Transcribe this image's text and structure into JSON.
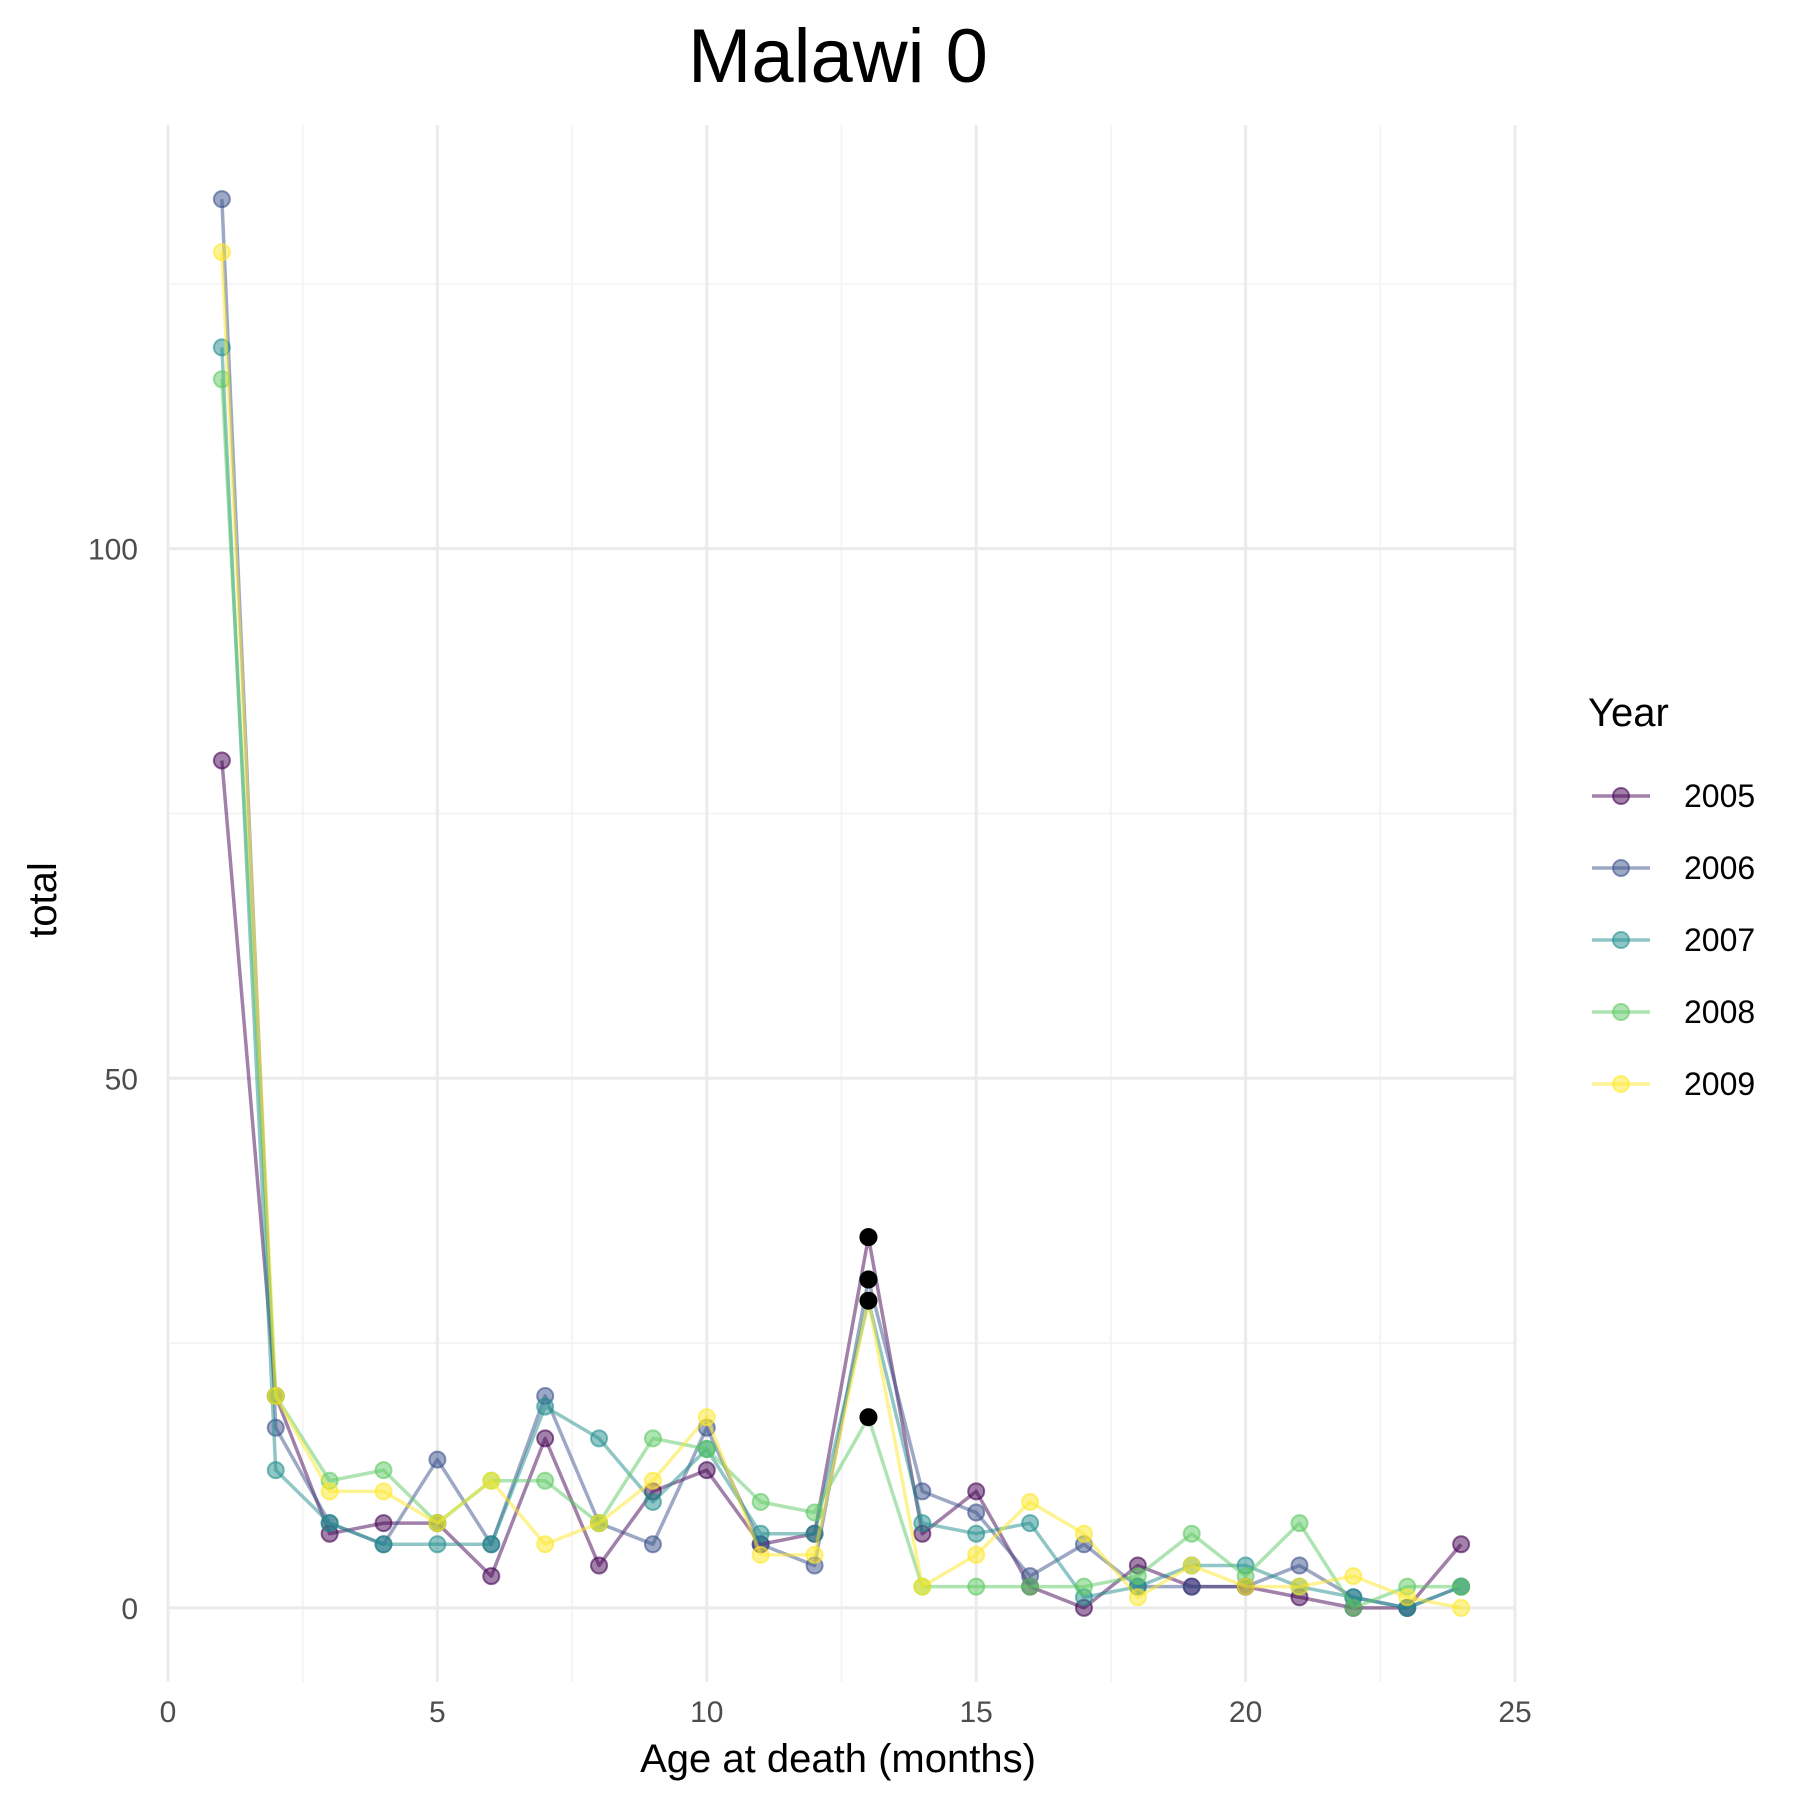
{
  "chart_data": {
    "type": "line",
    "title": "Malawi 0",
    "xlabel": "Age at death (months)",
    "ylabel": "total",
    "xlim": [
      0,
      25
    ],
    "ylim": [
      -7,
      140
    ],
    "x_ticks": [
      0,
      5,
      10,
      15,
      20,
      25
    ],
    "y_ticks": [
      0,
      50,
      100
    ],
    "grid": true,
    "legend": {
      "title": "Year",
      "position": "right"
    },
    "x": [
      1,
      2,
      3,
      4,
      5,
      6,
      7,
      8,
      9,
      10,
      11,
      12,
      13,
      14,
      15,
      16,
      17,
      18,
      19,
      20,
      21,
      22,
      23,
      24
    ],
    "series": [
      {
        "name": "2005",
        "color": "#440154",
        "values": [
          80,
          20,
          7,
          8,
          8,
          3,
          16,
          4,
          11,
          13,
          6,
          7,
          35,
          7,
          11,
          2,
          0,
          4,
          2,
          2,
          1,
          0,
          0,
          6
        ]
      },
      {
        "name": "2006",
        "color": "#3b528b",
        "values": [
          133,
          17,
          8,
          6,
          14,
          6,
          20,
          8,
          6,
          17,
          6,
          4,
          31,
          11,
          9,
          3,
          6,
          2,
          2,
          2,
          4,
          1,
          0,
          2
        ]
      },
      {
        "name": "2007",
        "color": "#21908d",
        "values": [
          119,
          13,
          8,
          6,
          6,
          6,
          19,
          16,
          10,
          15,
          7,
          7,
          29,
          8,
          7,
          8,
          1,
          2,
          4,
          4,
          2,
          1,
          0,
          2
        ]
      },
      {
        "name": "2008",
        "color": "#5dc963",
        "values": [
          116,
          20,
          12,
          13,
          8,
          12,
          12,
          8,
          16,
          15,
          10,
          9,
          18,
          2,
          2,
          2,
          2,
          3,
          7,
          3,
          8,
          0,
          2,
          2
        ]
      },
      {
        "name": "2009",
        "color": "#fde725",
        "values": [
          128,
          20,
          11,
          11,
          8,
          12,
          6,
          8,
          12,
          18,
          5,
          5,
          29,
          2,
          5,
          10,
          7,
          1,
          4,
          2,
          2,
          3,
          1,
          0
        ]
      }
    ],
    "highlight_points": {
      "x": [
        13,
        13,
        13,
        13
      ],
      "y": [
        35,
        31,
        29,
        18
      ],
      "color": "#000000"
    }
  }
}
